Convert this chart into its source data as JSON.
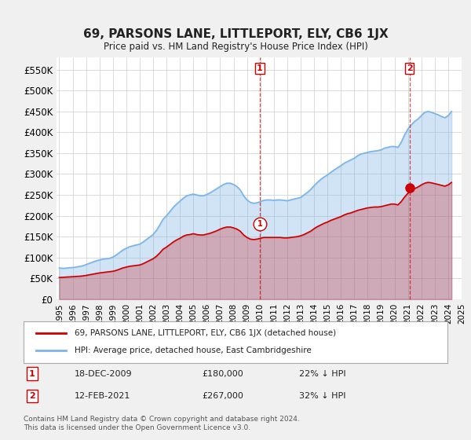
{
  "title": "69, PARSONS LANE, LITTLEPORT, ELY, CB6 1JX",
  "subtitle": "Price paid vs. HM Land Registry's House Price Index (HPI)",
  "ylabel_ticks": [
    "£0",
    "£50K",
    "£100K",
    "£150K",
    "£200K",
    "£250K",
    "£300K",
    "£350K",
    "£400K",
    "£450K",
    "£500K",
    "£550K"
  ],
  "ytick_values": [
    0,
    50000,
    100000,
    150000,
    200000,
    250000,
    300000,
    350000,
    400000,
    450000,
    500000,
    550000
  ],
  "ylim": [
    0,
    580000
  ],
  "background_color": "#f0f0f0",
  "plot_bg_color": "#ffffff",
  "grid_color": "#cccccc",
  "hpi_color": "#7ab4e8",
  "price_color": "#cc0000",
  "transaction1": {
    "date": "18-DEC-2009",
    "price": 180000,
    "pct": "22%",
    "label": "1"
  },
  "transaction2": {
    "date": "12-FEB-2021",
    "price": 267000,
    "pct": "32%",
    "label": "2"
  },
  "legend_property": "69, PARSONS LANE, LITTLEPORT, ELY, CB6 1JX (detached house)",
  "legend_hpi": "HPI: Average price, detached house, East Cambridgeshire",
  "footer": "Contains HM Land Registry data © Crown copyright and database right 2024.\nThis data is licensed under the Open Government Licence v3.0.",
  "hpi_data": {
    "years": [
      1995.0,
      1995.25,
      1995.5,
      1995.75,
      1996.0,
      1996.25,
      1996.5,
      1996.75,
      1997.0,
      1997.25,
      1997.5,
      1997.75,
      1998.0,
      1998.25,
      1998.5,
      1998.75,
      1999.0,
      1999.25,
      1999.5,
      1999.75,
      2000.0,
      2000.25,
      2000.5,
      2000.75,
      2001.0,
      2001.25,
      2001.5,
      2001.75,
      2002.0,
      2002.25,
      2002.5,
      2002.75,
      2003.0,
      2003.25,
      2003.5,
      2003.75,
      2004.0,
      2004.25,
      2004.5,
      2004.75,
      2005.0,
      2005.25,
      2005.5,
      2005.75,
      2006.0,
      2006.25,
      2006.5,
      2006.75,
      2007.0,
      2007.25,
      2007.5,
      2007.75,
      2008.0,
      2008.25,
      2008.5,
      2008.75,
      2009.0,
      2009.25,
      2009.5,
      2009.75,
      2010.0,
      2010.25,
      2010.5,
      2010.75,
      2011.0,
      2011.25,
      2011.5,
      2011.75,
      2012.0,
      2012.25,
      2012.5,
      2012.75,
      2013.0,
      2013.25,
      2013.5,
      2013.75,
      2014.0,
      2014.25,
      2014.5,
      2014.75,
      2015.0,
      2015.25,
      2015.5,
      2015.75,
      2016.0,
      2016.25,
      2016.5,
      2016.75,
      2017.0,
      2017.25,
      2017.5,
      2017.75,
      2018.0,
      2018.25,
      2018.5,
      2018.75,
      2019.0,
      2019.25,
      2019.5,
      2019.75,
      2020.0,
      2020.25,
      2020.5,
      2020.75,
      2021.0,
      2021.25,
      2021.5,
      2021.75,
      2022.0,
      2022.25,
      2022.5,
      2022.75,
      2023.0,
      2023.25,
      2023.5,
      2023.75,
      2024.0,
      2024.25
    ],
    "values": [
      75000,
      74000,
      74500,
      75500,
      76000,
      77000,
      78500,
      80000,
      83000,
      86000,
      89000,
      92000,
      94000,
      96000,
      97000,
      98000,
      101000,
      106000,
      112000,
      118000,
      122000,
      126000,
      128000,
      130000,
      132000,
      137000,
      143000,
      149000,
      155000,
      165000,
      178000,
      192000,
      200000,
      210000,
      220000,
      228000,
      235000,
      242000,
      248000,
      250000,
      252000,
      250000,
      248000,
      248000,
      251000,
      255000,
      260000,
      265000,
      270000,
      275000,
      278000,
      278000,
      275000,
      270000,
      262000,
      248000,
      238000,
      232000,
      230000,
      231000,
      234000,
      237000,
      238000,
      238000,
      237000,
      238000,
      238000,
      237000,
      236000,
      238000,
      240000,
      242000,
      244000,
      250000,
      256000,
      263000,
      272000,
      280000,
      287000,
      293000,
      298000,
      304000,
      310000,
      315000,
      320000,
      326000,
      330000,
      334000,
      338000,
      344000,
      348000,
      350000,
      352000,
      354000,
      355000,
      356000,
      358000,
      362000,
      364000,
      366000,
      366000,
      364000,
      376000,
      394000,
      408000,
      418000,
      426000,
      432000,
      440000,
      448000,
      450000,
      448000,
      445000,
      442000,
      438000,
      435000,
      440000,
      450000
    ]
  },
  "price_data": {
    "years": [
      1995.0,
      1995.25,
      1995.5,
      1995.75,
      1996.0,
      1996.25,
      1996.5,
      1996.75,
      1997.0,
      1997.25,
      1997.5,
      1997.75,
      1998.0,
      1998.25,
      1998.5,
      1998.75,
      1999.0,
      1999.25,
      1999.5,
      1999.75,
      2000.0,
      2000.25,
      2000.5,
      2000.75,
      2001.0,
      2001.25,
      2001.5,
      2001.75,
      2002.0,
      2002.25,
      2002.5,
      2002.75,
      2003.0,
      2003.25,
      2003.5,
      2003.75,
      2004.0,
      2004.25,
      2004.5,
      2004.75,
      2005.0,
      2005.25,
      2005.5,
      2005.75,
      2006.0,
      2006.25,
      2006.5,
      2006.75,
      2007.0,
      2007.25,
      2007.5,
      2007.75,
      2008.0,
      2008.25,
      2008.5,
      2008.75,
      2009.0,
      2009.25,
      2009.5,
      2009.75,
      2010.0,
      2010.25,
      2010.5,
      2010.75,
      2011.0,
      2011.25,
      2011.5,
      2011.75,
      2012.0,
      2012.25,
      2012.5,
      2012.75,
      2013.0,
      2013.25,
      2013.5,
      2013.75,
      2014.0,
      2014.25,
      2014.5,
      2014.75,
      2015.0,
      2015.25,
      2015.5,
      2015.75,
      2016.0,
      2016.25,
      2016.5,
      2016.75,
      2017.0,
      2017.25,
      2017.5,
      2017.75,
      2018.0,
      2018.25,
      2018.5,
      2018.75,
      2019.0,
      2019.25,
      2019.5,
      2019.75,
      2020.0,
      2020.25,
      2020.5,
      2020.75,
      2021.0,
      2021.25,
      2021.5,
      2021.75,
      2022.0,
      2022.25,
      2022.5,
      2022.75,
      2023.0,
      2023.25,
      2023.5,
      2023.75,
      2024.0,
      2024.25
    ],
    "values": [
      52000,
      52500,
      53000,
      53500,
      54000,
      54500,
      55000,
      55800,
      57000,
      58500,
      60000,
      61500,
      63000,
      64000,
      65000,
      66000,
      67000,
      69000,
      72000,
      75000,
      77000,
      79000,
      80000,
      81000,
      82000,
      85000,
      89000,
      93000,
      97000,
      103000,
      111000,
      120000,
      125000,
      131000,
      137000,
      142000,
      146000,
      151000,
      154000,
      155000,
      157000,
      155000,
      154000,
      154000,
      156000,
      158000,
      161000,
      164000,
      168000,
      171000,
      173000,
      173000,
      171000,
      168000,
      163000,
      154000,
      148000,
      144000,
      143000,
      144000,
      146000,
      148000,
      148000,
      148000,
      148000,
      148000,
      148000,
      147000,
      147000,
      148000,
      149000,
      150000,
      152000,
      155000,
      159000,
      163000,
      169000,
      174000,
      178000,
      182000,
      185000,
      189000,
      192000,
      195000,
      198000,
      202000,
      205000,
      207000,
      210000,
      213000,
      215000,
      217000,
      219000,
      220000,
      221000,
      221000,
      222000,
      224000,
      226000,
      228000,
      228000,
      226000,
      234000,
      245000,
      254000,
      260000,
      265000,
      269000,
      274000,
      278000,
      280000,
      279000,
      277000,
      275000,
      273000,
      271000,
      274000,
      280000
    ]
  },
  "transaction1_x": 2009.96,
  "transaction2_x": 2021.12
}
